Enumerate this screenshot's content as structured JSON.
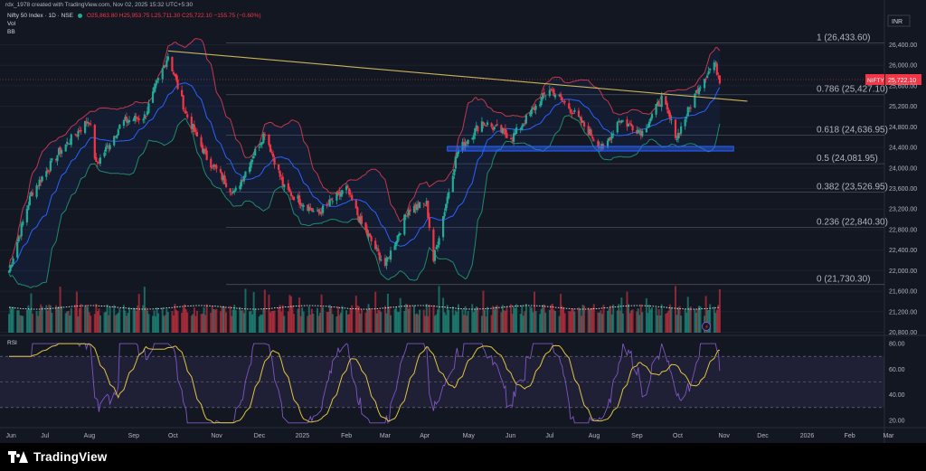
{
  "header": {
    "created_line": "rdx_1978 created with TradingView.com, Nov 02, 2025 15:32 UTC+5:30",
    "instrument": "Nifty 50 Index · 1D · NSE",
    "ohlc": "O25,863.80 H25,953.75 L25,711.30 C25,722.10 −155.75 (−0.60%)",
    "indicators": [
      "Vol",
      "BB"
    ]
  },
  "currency": "INR",
  "price_badge": {
    "symbol": "NIFTY",
    "value": "25,722.10"
  },
  "rsi_label": "RSI",
  "footer": {
    "brand": "TradingView"
  },
  "colors": {
    "up": "#22ab94",
    "down": "#f23645",
    "bb_upper": "#c2384c",
    "bb_lower": "#1f8a6c",
    "bb_basis": "#2962ff",
    "fib": "#b2b5be",
    "trend": "#c9b458",
    "rsi": "#7e57c2",
    "rsi_ma": "#e0c341",
    "support": "#2962ff"
  },
  "chart_data": {
    "type": "candlestick",
    "x_ticks": [
      "Jun",
      "Jul",
      "Aug",
      "Sep",
      "Oct",
      "Nov",
      "Dec",
      "2025",
      "Feb",
      "Mar",
      "Apr",
      "May",
      "Jun",
      "Jul",
      "Aug",
      "Sep",
      "Oct",
      "Nov",
      "Dec",
      "2026",
      "Feb",
      "Mar"
    ],
    "y_ticks": [
      "26,400.00",
      "26,000.00",
      "25,600.00",
      "25,200.00",
      "24,800.00",
      "24,400.00",
      "24,000.00",
      "23,600.00",
      "23,200.00",
      "22,800.00",
      "22,400.00",
      "22,000.00",
      "21,600.00",
      "21,200.00",
      "20,800.00"
    ],
    "ylim": [
      20800,
      26700
    ],
    "fib_levels": [
      {
        "ratio": "1",
        "value": 26433.6,
        "label": "1 (26,433.60)"
      },
      {
        "ratio": "0.786",
        "value": 25427.1,
        "label": "0.786 (25,427.10)"
      },
      {
        "ratio": "0.618",
        "value": 24636.95,
        "label": "0.618 (24,636.95)"
      },
      {
        "ratio": "0.5",
        "value": 24081.95,
        "label": "0.5 (24,081.95)"
      },
      {
        "ratio": "0.382",
        "value": 23526.95,
        "label": "0.382 (23,526.95)"
      },
      {
        "ratio": "0.236",
        "value": 22840.3,
        "label": "0.236 (22,840.30)"
      },
      {
        "ratio": "0",
        "value": 21730.3,
        "label": "0 (21,730.30)"
      }
    ],
    "close_path": [
      [
        "2024-06-04",
        22000
      ],
      [
        "2024-06-20",
        23500
      ],
      [
        "2024-07-10",
        24300
      ],
      [
        "2024-08-01",
        24950
      ],
      [
        "2024-08-06",
        24050
      ],
      [
        "2024-08-25",
        24900
      ],
      [
        "2024-09-10",
        25000
      ],
      [
        "2024-09-27",
        26200
      ],
      [
        "2024-10-10",
        25050
      ],
      [
        "2024-10-25",
        24200
      ],
      [
        "2024-11-14",
        23500
      ],
      [
        "2024-12-06",
        24700
      ],
      [
        "2024-12-20",
        23600
      ],
      [
        "2025-01-13",
        23100
      ],
      [
        "2025-02-03",
        23600
      ],
      [
        "2025-02-14",
        22900
      ],
      [
        "2025-03-03",
        22100
      ],
      [
        "2025-03-20",
        23200
      ],
      [
        "2025-04-02",
        23300
      ],
      [
        "2025-04-07",
        22200
      ],
      [
        "2025-04-24",
        24300
      ],
      [
        "2025-05-12",
        24900
      ],
      [
        "2025-06-03",
        24600
      ],
      [
        "2025-06-30",
        25550
      ],
      [
        "2025-07-15",
        25150
      ],
      [
        "2025-08-08",
        24350
      ],
      [
        "2025-08-19",
        24950
      ],
      [
        "2025-09-05",
        24700
      ],
      [
        "2025-09-19",
        25350
      ],
      [
        "2025-09-30",
        24600
      ],
      [
        "2025-10-16",
        25600
      ],
      [
        "2025-10-27",
        26050
      ],
      [
        "2025-10-31",
        25722
      ]
    ],
    "trendline": [
      [
        "2024-09-27",
        26280
      ],
      [
        "2025-11-20",
        25300
      ]
    ],
    "support_zone": {
      "from": "2025-04-17",
      "to": "2025-11-10",
      "low": 24330,
      "high": 24420
    },
    "rsi": {
      "ylim": [
        15,
        85
      ],
      "y_ticks": [
        "80.00",
        "60.00",
        "40.00",
        "20.00"
      ],
      "band": [
        30,
        70
      ]
    }
  }
}
